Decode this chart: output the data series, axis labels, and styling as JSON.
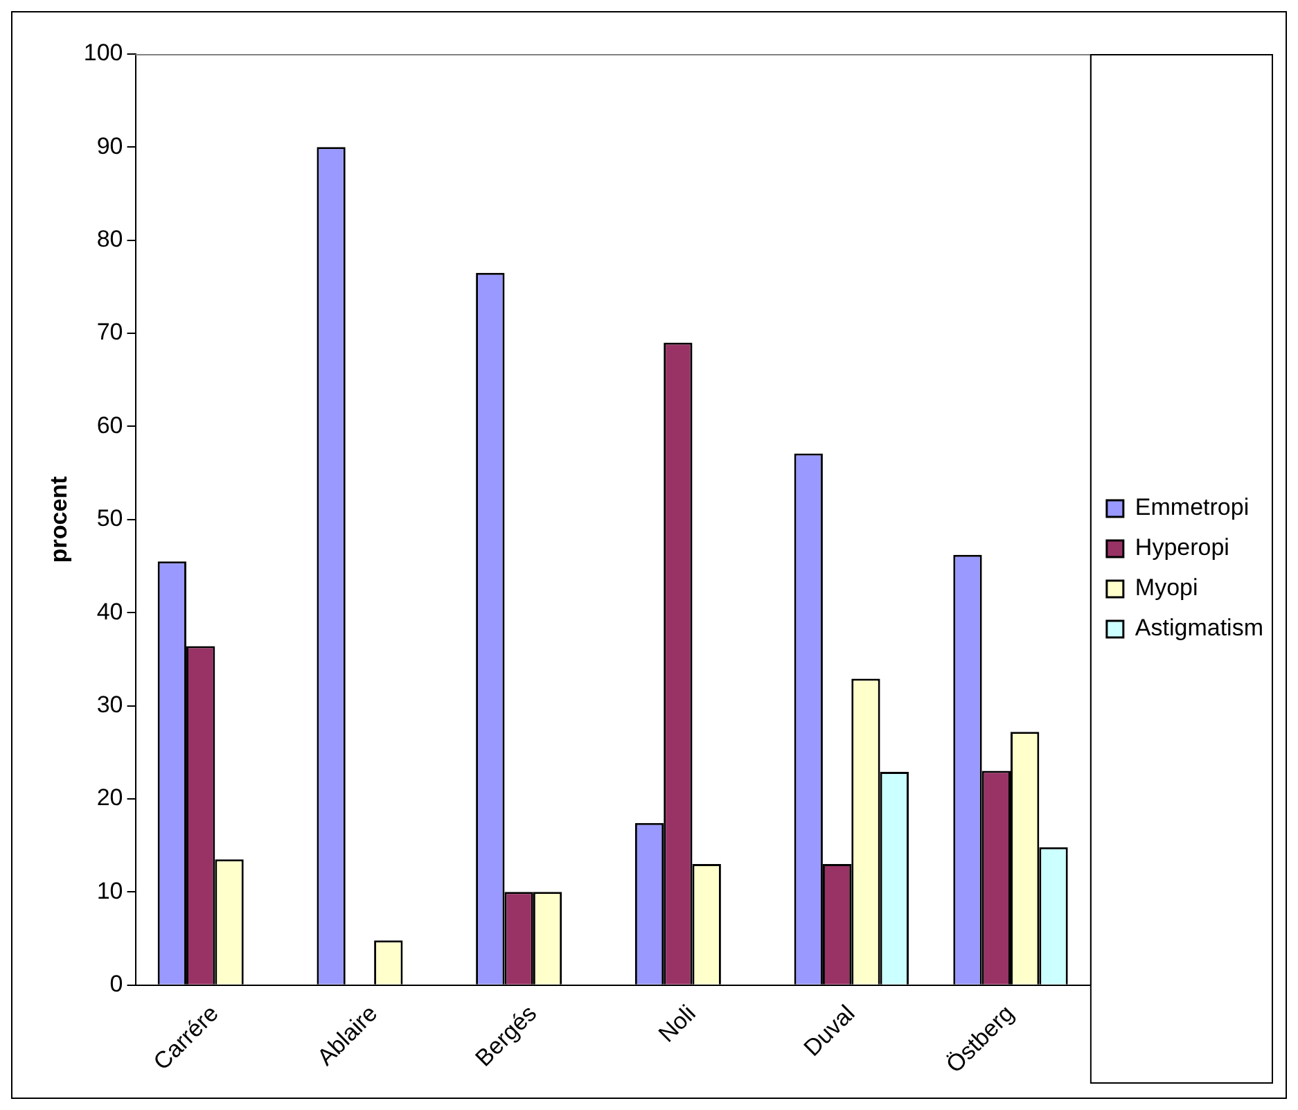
{
  "chart_data": {
    "type": "bar",
    "ylabel": "procent",
    "categories": [
      "Carrére",
      "Ablaire",
      "Bergés",
      "Noli",
      "Duval",
      "Östberg"
    ],
    "series": [
      {
        "name": "Emmetropi",
        "color": "#9999ff",
        "values": [
          45.5,
          90,
          76.5,
          17.4,
          57.1,
          46.2
        ]
      },
      {
        "name": "Hyperopi",
        "color": "#993366",
        "values": [
          36.4,
          0,
          10,
          69,
          13,
          23
        ]
      },
      {
        "name": "Myopi",
        "color": "#ffffcc",
        "values": [
          13.5,
          4.8,
          10,
          13,
          32.9,
          27.2
        ]
      },
      {
        "name": "Astigmatism",
        "color": "#ccffff",
        "values": [
          0,
          0,
          0,
          0,
          22.9,
          14.8
        ]
      }
    ],
    "ylim": [
      0,
      100
    ],
    "yticks": [
      0,
      10,
      20,
      30,
      40,
      50,
      60,
      70,
      80,
      90,
      100
    ],
    "grid": false,
    "legend": "right"
  }
}
